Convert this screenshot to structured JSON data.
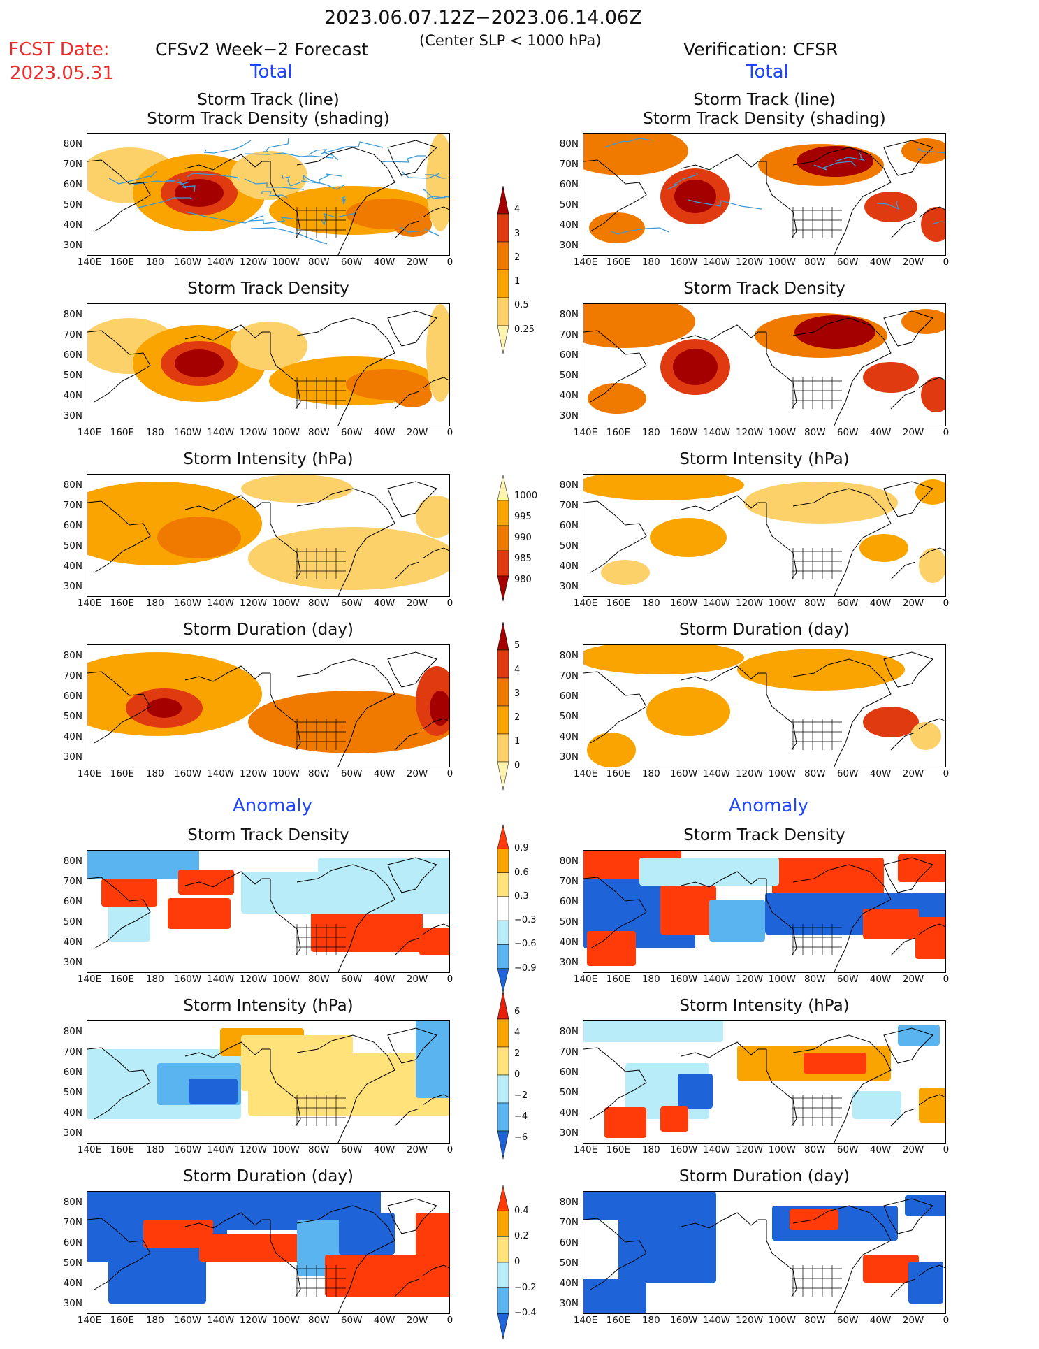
{
  "header": {
    "date_range": "2023.06.07.12Z−2023.06.14.06Z",
    "criterion": "(Center SLP < 1000 hPa)",
    "fcst_label": "FCST Date:",
    "fcst_date": "2023.05.31",
    "left_title": "CFSv2 Week−2 Forecast",
    "right_title": "Verification: CFSR",
    "total_label_left": "Total",
    "total_label_right": "Total",
    "anomaly_label_left": "Anomaly",
    "anomaly_label_right": "Anomaly"
  },
  "panel_titles": {
    "track_line_1": "Storm Track (line)",
    "track_line_2": "Storm Track Density (shading)",
    "density": "Storm Track Density",
    "intensity": "Storm Intensity (hPa)",
    "duration": "Storm Duration (day)"
  },
  "axes": {
    "lat_labels": [
      "80N",
      "70N",
      "60N",
      "50N",
      "40N",
      "30N"
    ],
    "lon_labels": [
      "140E",
      "160E",
      "180",
      "160W",
      "140W",
      "120W",
      "100W",
      "80W",
      "60W",
      "40W",
      "20W",
      "0"
    ]
  },
  "colorbars": {
    "density_total": {
      "labels": [
        "4",
        "3",
        "2",
        "1",
        "0.5",
        "0.25"
      ],
      "colors": [
        "#a50000",
        "#e03a10",
        "#f07a00",
        "#f9a400",
        "#fdd16a",
        "#fff3b0"
      ]
    },
    "intensity_total": {
      "labels": [
        "1000",
        "995",
        "990",
        "985",
        "980"
      ],
      "colors": [
        "#fff3b0",
        "#f9a400",
        "#f07a00",
        "#e03a10",
        "#a50000"
      ]
    },
    "duration_total": {
      "labels": [
        "5",
        "4",
        "3",
        "2",
        "1",
        "0"
      ],
      "colors": [
        "#a50000",
        "#e03a10",
        "#f07a00",
        "#f9a400",
        "#fdd16a",
        "#fff3b0"
      ]
    },
    "density_anom": {
      "labels": [
        "0.9",
        "0.6",
        "0.3",
        "−0.3",
        "−0.6",
        "−0.9"
      ],
      "colors": [
        "#ff3b0a",
        "#f9a400",
        "#ffe27a",
        "#ffffff",
        "#b8ecf8",
        "#5ab4f0",
        "#1e64d8"
      ]
    },
    "intensity_anom": {
      "labels": [
        "6",
        "4",
        "2",
        "0",
        "−2",
        "−4",
        "−6"
      ],
      "colors": [
        "#e6200a",
        "#f9a400",
        "#ffe27a",
        "#b8ecf8",
        "#5ab4f0",
        "#1e64d8"
      ]
    },
    "duration_anom": {
      "labels": [
        "0.4",
        "0.2",
        "0",
        "−0.2",
        "−0.4"
      ],
      "colors": [
        "#ff3b0a",
        "#f9a400",
        "#ffe27a",
        "#b8ecf8",
        "#5ab4f0",
        "#1e64d8"
      ]
    }
  }
}
